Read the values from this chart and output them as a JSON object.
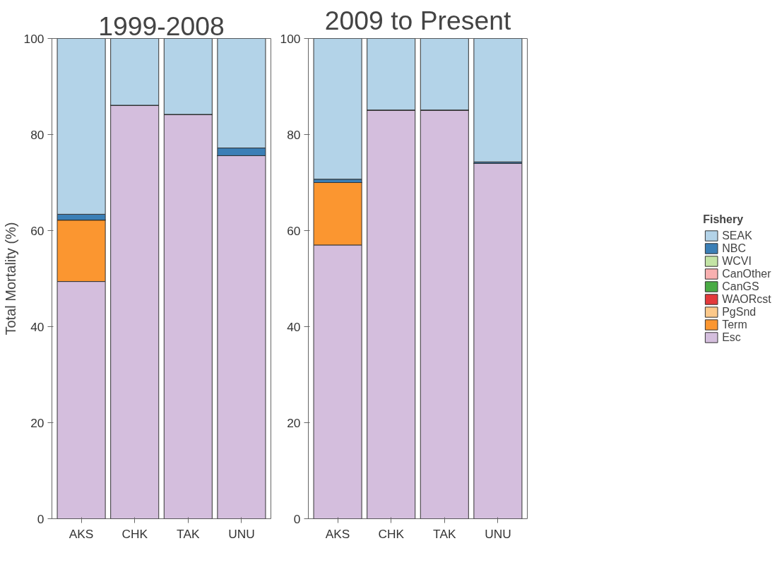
{
  "chart_data": [
    {
      "type": "bar",
      "title": "1999-2008",
      "ylabel": "Total Mortality (%)",
      "categories": [
        "AKS",
        "CHK",
        "TAK",
        "UNU"
      ],
      "stacked": true,
      "ylim": [
        0,
        100
      ],
      "yticks": [
        0,
        20,
        40,
        60,
        80,
        100
      ],
      "grid": false,
      "series": [
        {
          "color": "#d4bedd",
          "values": [
            49.4,
            86.1,
            84.2,
            75.6
          ]
        },
        {
          "color": "#fb9630",
          "values": [
            12.8,
            0,
            0,
            0
          ]
        },
        {
          "color": "#fdc98a",
          "values": [
            0,
            0,
            0,
            0
          ]
        },
        {
          "color": "#e3393b",
          "values": [
            0,
            0,
            0,
            0
          ]
        },
        {
          "color": "#4aab45",
          "values": [
            0,
            0,
            0,
            0
          ]
        },
        {
          "color": "#f8b0b0",
          "values": [
            0,
            0,
            0,
            0
          ]
        },
        {
          "color": "#c3e4a5",
          "values": [
            0,
            0,
            0,
            0
          ]
        },
        {
          "color": "#3b7fb6",
          "values": [
            1.2,
            0,
            0,
            1.6
          ]
        },
        {
          "color": "#b3d3e8",
          "values": [
            36.6,
            13.9,
            15.8,
            22.8
          ]
        }
      ]
    },
    {
      "type": "bar",
      "title": "2009 to Present",
      "categories": [
        "AKS",
        "CHK",
        "TAK",
        "UNU"
      ],
      "stacked": true,
      "ylim": [
        0,
        100
      ],
      "yticks": [
        0,
        20,
        40,
        60,
        80,
        100
      ],
      "grid": false,
      "legend": "right",
      "legend_title": "Fishery",
      "series": [
        {
          "name": "Esc",
          "color": "#d4bedd",
          "values": [
            57.0,
            85.1,
            85.1,
            74.0
          ]
        },
        {
          "name": "Term",
          "color": "#fb9630",
          "values": [
            13.0,
            0,
            0,
            0
          ]
        },
        {
          "name": "PgSnd",
          "color": "#fdc98a",
          "values": [
            0,
            0,
            0,
            0
          ]
        },
        {
          "name": "WAORcst",
          "color": "#e3393b",
          "values": [
            0,
            0,
            0,
            0
          ]
        },
        {
          "name": "CanGS",
          "color": "#4aab45",
          "values": [
            0,
            0,
            0,
            0
          ]
        },
        {
          "name": "CanOther",
          "color": "#f8b0b0",
          "values": [
            0,
            0,
            0,
            0
          ]
        },
        {
          "name": "WCVI",
          "color": "#c3e4a5",
          "values": [
            0,
            0,
            0,
            0
          ]
        },
        {
          "name": "NBC",
          "color": "#3b7fb6",
          "values": [
            0.7,
            0,
            0,
            0.3
          ]
        },
        {
          "name": "SEAK",
          "color": "#b3d3e8",
          "values": [
            29.3,
            14.9,
            14.9,
            25.7
          ]
        }
      ]
    }
  ]
}
